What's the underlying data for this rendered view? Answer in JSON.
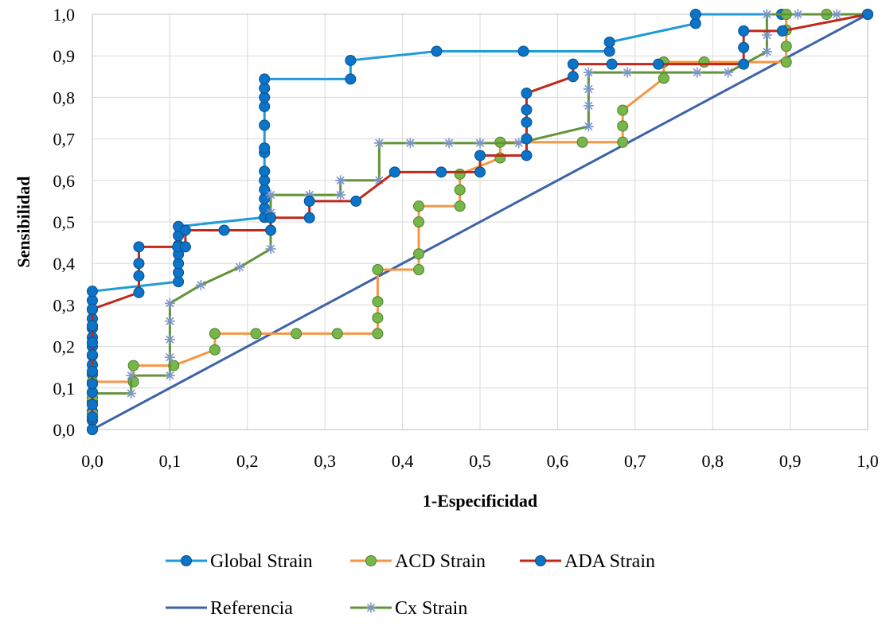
{
  "chart_data": {
    "type": "line",
    "title": "",
    "xlabel": "1-Especificidad",
    "ylabel": "Sensibilidad",
    "xlim": [
      0,
      1
    ],
    "ylim": [
      0,
      1
    ],
    "x_ticks": [
      "0,0",
      "0,1",
      "0,2",
      "0,3",
      "0,4",
      "0,5",
      "0,6",
      "0,7",
      "0,8",
      "0,9",
      "1,0"
    ],
    "y_ticks": [
      "0,0",
      "0,1",
      "0,2",
      "0,3",
      "0,4",
      "0,5",
      "0,6",
      "0,7",
      "0,8",
      "0,9",
      "1,0"
    ],
    "grid": true,
    "legend_position": "bottom",
    "series": [
      {
        "name": "Global Strain",
        "color": "#1f9bd7",
        "marker": "circle",
        "marker_color": "#0b74c8",
        "points": [
          [
            0,
            0
          ],
          [
            0,
            0.022
          ],
          [
            0,
            0.044
          ],
          [
            0,
            0.067
          ],
          [
            0,
            0.089
          ],
          [
            0,
            0.111
          ],
          [
            0,
            0.133
          ],
          [
            0,
            0.156
          ],
          [
            0,
            0.178
          ],
          [
            0,
            0.2
          ],
          [
            0,
            0.222
          ],
          [
            0,
            0.244
          ],
          [
            0,
            0.267
          ],
          [
            0,
            0.289
          ],
          [
            0,
            0.311
          ],
          [
            0,
            0.333
          ],
          [
            0.111,
            0.356
          ],
          [
            0.111,
            0.378
          ],
          [
            0.111,
            0.4
          ],
          [
            0.111,
            0.422
          ],
          [
            0.111,
            0.444
          ],
          [
            0.111,
            0.467
          ],
          [
            0.111,
            0.489
          ],
          [
            0.222,
            0.511
          ],
          [
            0.222,
            0.533
          ],
          [
            0.222,
            0.556
          ],
          [
            0.222,
            0.578
          ],
          [
            0.222,
            0.6
          ],
          [
            0.222,
            0.622
          ],
          [
            0.222,
            0.667
          ],
          [
            0.222,
            0.678
          ],
          [
            0.222,
            0.733
          ],
          [
            0.222,
            0.778
          ],
          [
            0.222,
            0.8
          ],
          [
            0.222,
            0.822
          ],
          [
            0.222,
            0.844
          ],
          [
            0.333,
            0.844
          ],
          [
            0.333,
            0.889
          ],
          [
            0.444,
            0.911
          ],
          [
            0.556,
            0.911
          ],
          [
            0.667,
            0.911
          ],
          [
            0.667,
            0.933
          ],
          [
            0.778,
            0.978
          ],
          [
            0.778,
            1.0
          ],
          [
            0.889,
            1.0
          ],
          [
            1.0,
            1.0
          ]
        ]
      },
      {
        "name": "ACD Strain",
        "color": "#f79646",
        "marker": "circle",
        "marker_color": "#77b74a",
        "points": [
          [
            0,
            0
          ],
          [
            0,
            0.038
          ],
          [
            0,
            0.077
          ],
          [
            0,
            0.115
          ],
          [
            0.053,
            0.115
          ],
          [
            0.053,
            0.154
          ],
          [
            0.105,
            0.154
          ],
          [
            0.158,
            0.192
          ],
          [
            0.158,
            0.231
          ],
          [
            0.211,
            0.231
          ],
          [
            0.263,
            0.231
          ],
          [
            0.316,
            0.231
          ],
          [
            0.368,
            0.231
          ],
          [
            0.368,
            0.269
          ],
          [
            0.368,
            0.308
          ],
          [
            0.368,
            0.385
          ],
          [
            0.421,
            0.385
          ],
          [
            0.421,
            0.423
          ],
          [
            0.421,
            0.5
          ],
          [
            0.421,
            0.538
          ],
          [
            0.474,
            0.538
          ],
          [
            0.474,
            0.577
          ],
          [
            0.474,
            0.615
          ],
          [
            0.526,
            0.654
          ],
          [
            0.526,
            0.692
          ],
          [
            0.632,
            0.692
          ],
          [
            0.684,
            0.692
          ],
          [
            0.684,
            0.731
          ],
          [
            0.684,
            0.769
          ],
          [
            0.737,
            0.846
          ],
          [
            0.737,
            0.885
          ],
          [
            0.789,
            0.885
          ],
          [
            0.895,
            0.885
          ],
          [
            0.895,
            0.923
          ],
          [
            0.895,
            0.962
          ],
          [
            0.895,
            1.0
          ],
          [
            0.947,
            1.0
          ],
          [
            1.0,
            1.0
          ]
        ]
      },
      {
        "name": "ADA Strain",
        "color": "#c0281c",
        "marker": "circle",
        "marker_color": "#0b74c8",
        "points": [
          [
            0,
            0
          ],
          [
            0,
            0.03
          ],
          [
            0,
            0.06
          ],
          [
            0,
            0.09
          ],
          [
            0,
            0.11
          ],
          [
            0,
            0.14
          ],
          [
            0,
            0.18
          ],
          [
            0,
            0.21
          ],
          [
            0,
            0.25
          ],
          [
            0,
            0.29
          ],
          [
            0.06,
            0.33
          ],
          [
            0.06,
            0.37
          ],
          [
            0.06,
            0.4
          ],
          [
            0.06,
            0.44
          ],
          [
            0.11,
            0.44
          ],
          [
            0.12,
            0.44
          ],
          [
            0.12,
            0.48
          ],
          [
            0.17,
            0.48
          ],
          [
            0.23,
            0.48
          ],
          [
            0.23,
            0.51
          ],
          [
            0.28,
            0.51
          ],
          [
            0.28,
            0.55
          ],
          [
            0.34,
            0.55
          ],
          [
            0.39,
            0.62
          ],
          [
            0.45,
            0.62
          ],
          [
            0.5,
            0.62
          ],
          [
            0.5,
            0.66
          ],
          [
            0.56,
            0.66
          ],
          [
            0.56,
            0.7
          ],
          [
            0.56,
            0.74
          ],
          [
            0.56,
            0.77
          ],
          [
            0.56,
            0.81
          ],
          [
            0.62,
            0.85
          ],
          [
            0.62,
            0.88
          ],
          [
            0.67,
            0.88
          ],
          [
            0.73,
            0.88
          ],
          [
            0.84,
            0.88
          ],
          [
            0.84,
            0.92
          ],
          [
            0.84,
            0.96
          ],
          [
            0.89,
            0.96
          ],
          [
            1.0,
            1.0
          ]
        ]
      },
      {
        "name": "Referencia",
        "color": "#3c63a8",
        "marker": "none",
        "points": [
          [
            0,
            0
          ],
          [
            1,
            1
          ]
        ]
      },
      {
        "name": "Cx Strain",
        "color": "#629337",
        "marker": "star",
        "marker_color": "#7a95c8",
        "points": [
          [
            0,
            0
          ],
          [
            0,
            0.043
          ],
          [
            0,
            0.087
          ],
          [
            0.05,
            0.087
          ],
          [
            0.05,
            0.13
          ],
          [
            0.1,
            0.13
          ],
          [
            0.1,
            0.174
          ],
          [
            0.1,
            0.217
          ],
          [
            0.1,
            0.261
          ],
          [
            0.1,
            0.304
          ],
          [
            0.14,
            0.348
          ],
          [
            0.19,
            0.391
          ],
          [
            0.23,
            0.435
          ],
          [
            0.23,
            0.522
          ],
          [
            0.23,
            0.565
          ],
          [
            0.28,
            0.565
          ],
          [
            0.32,
            0.565
          ],
          [
            0.32,
            0.6
          ],
          [
            0.37,
            0.6
          ],
          [
            0.37,
            0.69
          ],
          [
            0.41,
            0.69
          ],
          [
            0.46,
            0.69
          ],
          [
            0.5,
            0.69
          ],
          [
            0.55,
            0.69
          ],
          [
            0.64,
            0.73
          ],
          [
            0.64,
            0.78
          ],
          [
            0.64,
            0.82
          ],
          [
            0.64,
            0.86
          ],
          [
            0.69,
            0.86
          ],
          [
            0.78,
            0.86
          ],
          [
            0.82,
            0.86
          ],
          [
            0.87,
            0.91
          ],
          [
            0.87,
            0.95
          ],
          [
            0.87,
            1.0
          ],
          [
            0.91,
            1.0
          ],
          [
            0.96,
            1.0
          ],
          [
            1.0,
            1.0
          ]
        ]
      }
    ]
  }
}
